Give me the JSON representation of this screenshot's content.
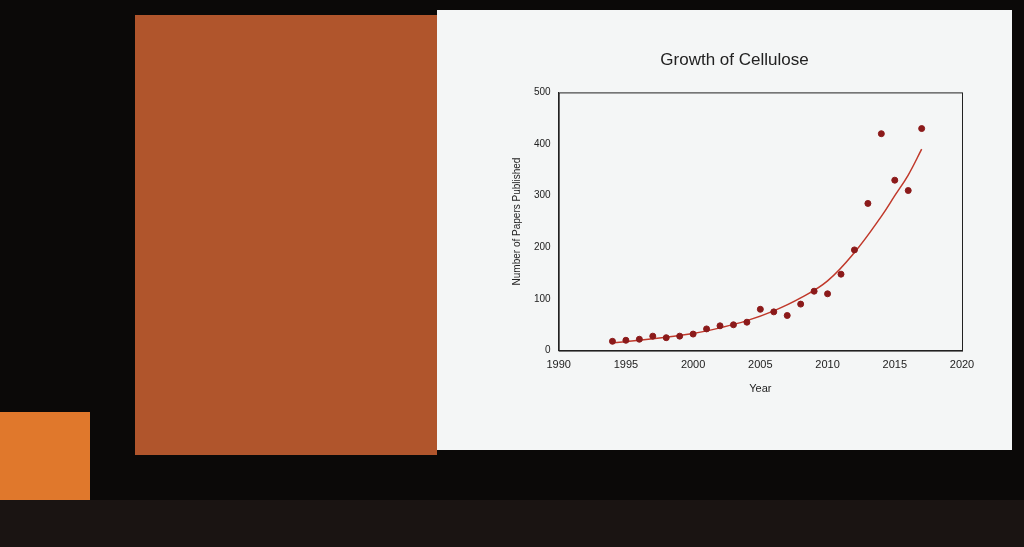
{
  "chart_data": {
    "type": "scatter",
    "title": "Growth of Cellulose",
    "x_label": "Year",
    "y_label": "Number of Papers Published",
    "xlim": [
      1990,
      2020
    ],
    "xticks": [
      1990,
      1995,
      2000,
      2005,
      2010,
      2015,
      2020
    ],
    "ylim": [
      0,
      500
    ],
    "yticks": [
      0,
      100,
      200,
      300,
      400,
      500
    ],
    "grid": false,
    "series": [
      {
        "type": "scatter",
        "color": "#8b1a1a",
        "marker": "circle",
        "x": [
          1994,
          1995,
          1996,
          1997,
          1998,
          1999,
          2000,
          2001,
          2002,
          2003,
          2004,
          2005,
          2006,
          2007,
          2008,
          2009,
          2010,
          2011,
          2012,
          2013,
          2014,
          2015,
          2016,
          2017
        ],
        "values": [
          18,
          20,
          22,
          28,
          25,
          28,
          32,
          42,
          48,
          50,
          55,
          80,
          75,
          68,
          90,
          115,
          110,
          148,
          195,
          285,
          420,
          330,
          310,
          430
        ]
      },
      {
        "type": "line",
        "color": "#c0392b",
        "line_style": "solid",
        "x": [
          1994,
          1996,
          1998,
          2000,
          2002,
          2004,
          2006,
          2008,
          2010,
          2012,
          2014,
          2015,
          2016,
          2017
        ],
        "values": [
          15,
          20,
          26,
          33,
          44,
          58,
          77,
          102,
          135,
          190,
          260,
          300,
          340,
          390
        ]
      }
    ]
  }
}
